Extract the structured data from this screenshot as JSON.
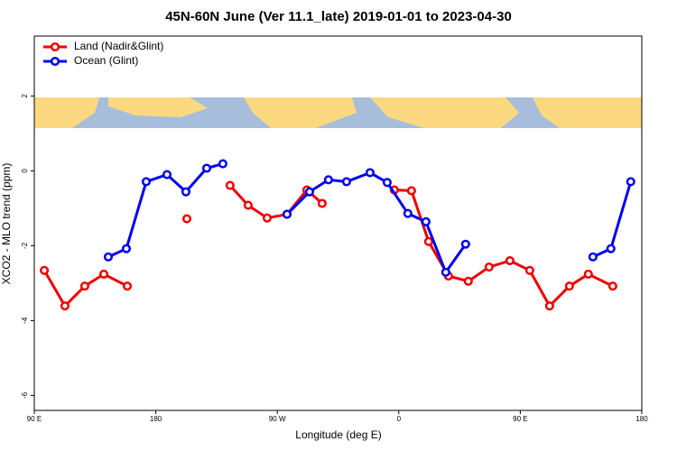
{
  "chart_data": {
    "type": "line",
    "title": "45N-60N June (Ver 11.1_late)   2019-01-01 to 2023-04-30",
    "x_label": "Longitude (deg E)",
    "y_label": "XCO2 - MLO trend (ppm)",
    "xlim": [
      90,
      540
    ],
    "xticks": [
      {
        "value": 90,
        "label": "90 E"
      },
      180,
      {
        "value": 270,
        "label": "90 W"
      },
      {
        "value": 360,
        "label": "0"
      },
      {
        "value": 450,
        "label": "90 E"
      },
      {
        "value": 540,
        "label": "180"
      }
    ],
    "ylim": [
      -6.4,
      3.6
    ],
    "yticks": [
      2,
      0,
      -2,
      -4,
      -6
    ],
    "legend": "top-left",
    "series": [
      {
        "name": "Land (Nadir&Glint)",
        "color": "#ee0000",
        "x": [
          97.4,
          112.7,
          127.4,
          141.5,
          158.9,
          null,
          203,
          null,
          235,
          248.4,
          262.5,
          277.2,
          291.9,
          303.2,
          null,
          356.7,
          369.4,
          382.1,
          396.8,
          411.5,
          426.9,
          442.3,
          457,
          471.7,
          486.4,
          500.4,
          518.5
        ],
        "values": [
          -2.66,
          -3.61,
          -3.08,
          -2.76,
          -3.08,
          null,
          -1.28,
          null,
          -0.39,
          -0.92,
          -1.26,
          -1.16,
          -0.51,
          -0.87,
          null,
          -0.51,
          -0.53,
          -1.89,
          -2.81,
          -2.95,
          -2.57,
          -2.4,
          -2.66,
          -3.61,
          -3.08,
          -2.76,
          -3.08
        ]
      },
      {
        "name": "Ocean (Glint)",
        "color": "#0000ee",
        "x": [
          144.8,
          158.2,
          172.9,
          188.3,
          202.3,
          217.7,
          229.7,
          null,
          277.2,
          293.9,
          307.9,
          321.3,
          338.7,
          351.4,
          366.7,
          380.1,
          394.8,
          409.5,
          null,
          503.8,
          517.1,
          531.8
        ],
        "values": [
          -2.3,
          -2.08,
          -0.29,
          -0.1,
          -0.56,
          0.07,
          0.19,
          null,
          -1.16,
          -0.56,
          -0.24,
          -0.29,
          -0.05,
          -0.31,
          -1.14,
          -1.36,
          -2.71,
          -1.96,
          null,
          -2.3,
          -2.08,
          -0.29
        ]
      }
    ]
  }
}
